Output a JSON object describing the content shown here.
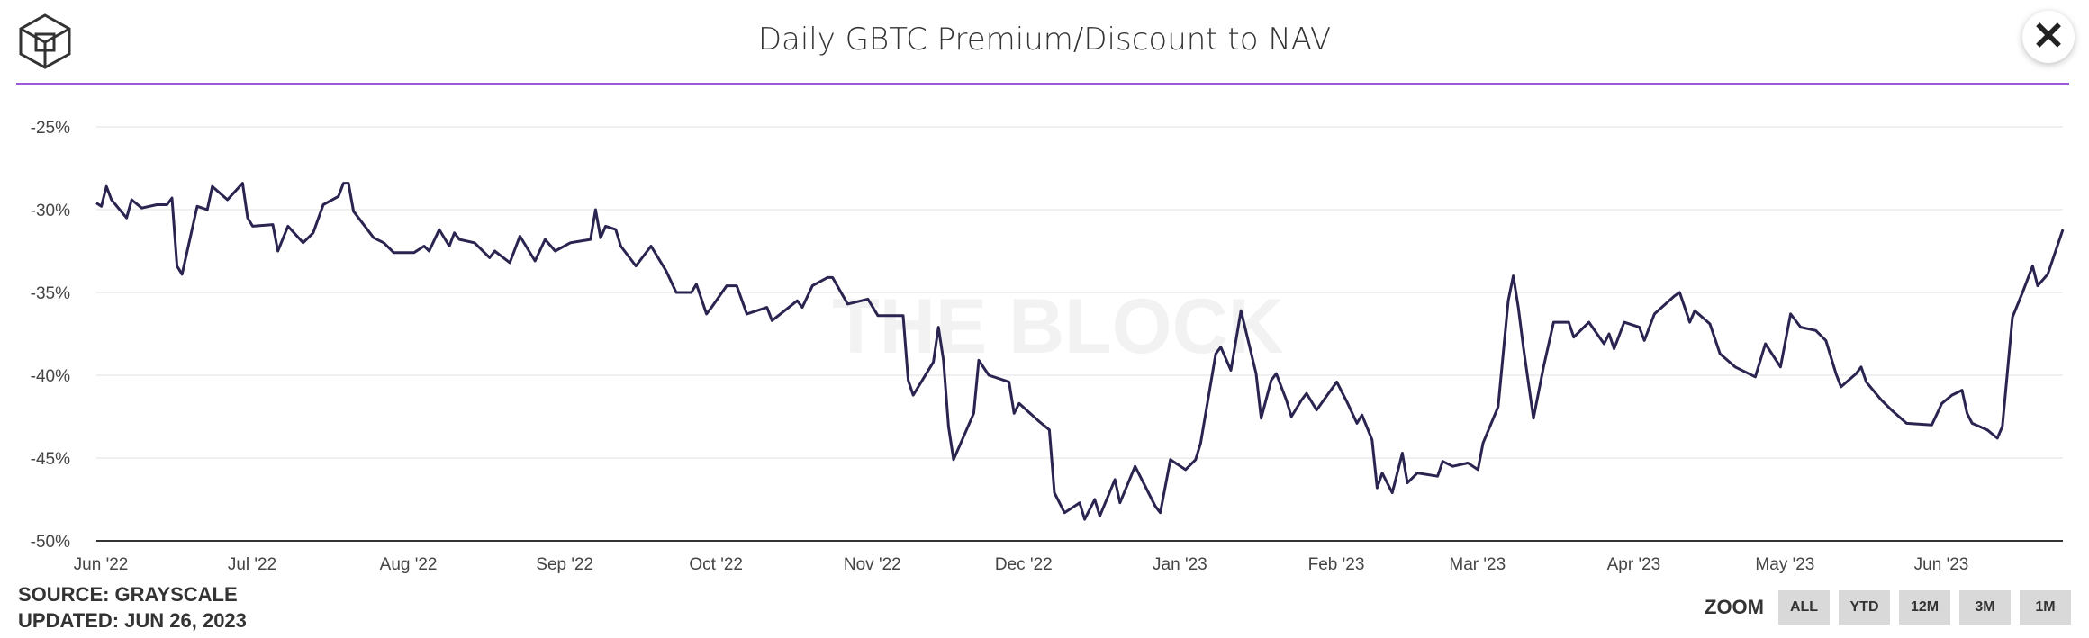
{
  "header": {
    "title": "Daily GBTC Premium/Discount to NAV",
    "close_icon": "close-x-icon",
    "logo_icon": "the-block-cube-logo"
  },
  "footer": {
    "source": "SOURCE: GRAYSCALE",
    "updated": "UPDATED: JUN 26, 2023"
  },
  "zoom": {
    "label": "ZOOM",
    "options": [
      "ALL",
      "YTD",
      "12M",
      "3M",
      "1M"
    ]
  },
  "colors": {
    "line": "#2a2550",
    "accent_rule": "#9b59d9",
    "grid": "#ebebeb"
  },
  "watermark": "THE BLOCK",
  "chart_data": {
    "type": "line",
    "title": "Daily GBTC Premium/Discount to NAV",
    "xlabel": "",
    "ylabel": "",
    "xlim": [
      "2022-06-01",
      "2023-06-26"
    ],
    "ylim": [
      -50,
      -25
    ],
    "y_ticks": [
      -25,
      -30,
      -35,
      -40,
      -45,
      -50
    ],
    "y_tick_labels": [
      "-25%",
      "-30%",
      "-35%",
      "-40%",
      "-45%",
      "-50%"
    ],
    "x_ticks": [
      "2022-06-01",
      "2022-07-01",
      "2022-08-01",
      "2022-09-01",
      "2022-10-01",
      "2022-11-01",
      "2022-12-01",
      "2023-01-01",
      "2023-02-01",
      "2023-03-01",
      "2023-04-01",
      "2023-05-01",
      "2023-06-01"
    ],
    "x_tick_labels": [
      "Jun '22",
      "Jul '22",
      "Aug '22",
      "Sep '22",
      "Oct '22",
      "Nov '22",
      "Dec '22",
      "Jan '23",
      "Feb '23",
      "Mar '23",
      "Apr '23",
      "May '23",
      "Jun '23"
    ],
    "grid": true,
    "legend": "none",
    "series": [
      {
        "points": [
          [
            "2022-06-01",
            -29.6
          ],
          [
            "2022-06-02",
            -29.8
          ],
          [
            "2022-06-03",
            -28.6
          ],
          [
            "2022-06-04",
            -29.4
          ],
          [
            "2022-06-07",
            -30.5
          ],
          [
            "2022-06-08",
            -29.4
          ],
          [
            "2022-06-10",
            -29.9
          ],
          [
            "2022-06-13",
            -29.7
          ],
          [
            "2022-06-15",
            -29.7
          ],
          [
            "2022-06-16",
            -29.3
          ],
          [
            "2022-06-17",
            -33.4
          ],
          [
            "2022-06-18",
            -33.9
          ],
          [
            "2022-06-21",
            -29.8
          ],
          [
            "2022-06-23",
            -30.0
          ],
          [
            "2022-06-24",
            -28.6
          ],
          [
            "2022-06-27",
            -29.4
          ],
          [
            "2022-06-30",
            -28.4
          ],
          [
            "2022-07-01",
            -30.5
          ],
          [
            "2022-07-02",
            -31.0
          ],
          [
            "2022-07-06",
            -30.9
          ],
          [
            "2022-07-07",
            -32.5
          ],
          [
            "2022-07-09",
            -31.0
          ],
          [
            "2022-07-12",
            -32.0
          ],
          [
            "2022-07-14",
            -31.4
          ],
          [
            "2022-07-16",
            -29.7
          ],
          [
            "2022-07-19",
            -29.2
          ],
          [
            "2022-07-20",
            -28.4
          ],
          [
            "2022-07-21",
            -28.4
          ],
          [
            "2022-07-22",
            -30.1
          ],
          [
            "2022-07-26",
            -31.7
          ],
          [
            "2022-07-28",
            -32.0
          ],
          [
            "2022-07-30",
            -32.6
          ],
          [
            "2022-08-03",
            -32.6
          ],
          [
            "2022-08-05",
            -32.2
          ],
          [
            "2022-08-06",
            -32.5
          ],
          [
            "2022-08-08",
            -31.2
          ],
          [
            "2022-08-10",
            -32.2
          ],
          [
            "2022-08-11",
            -31.4
          ],
          [
            "2022-08-12",
            -31.8
          ],
          [
            "2022-08-15",
            -32.0
          ],
          [
            "2022-08-18",
            -32.9
          ],
          [
            "2022-08-19",
            -32.5
          ],
          [
            "2022-08-22",
            -33.2
          ],
          [
            "2022-08-24",
            -31.6
          ],
          [
            "2022-08-27",
            -33.1
          ],
          [
            "2022-08-29",
            -31.8
          ],
          [
            "2022-08-31",
            -32.5
          ],
          [
            "2022-09-03",
            -32.0
          ],
          [
            "2022-09-07",
            -31.8
          ],
          [
            "2022-09-08",
            -30.0
          ],
          [
            "2022-09-09",
            -31.7
          ],
          [
            "2022-09-10",
            -31.0
          ],
          [
            "2022-09-12",
            -31.2
          ],
          [
            "2022-09-13",
            -32.2
          ],
          [
            "2022-09-16",
            -33.4
          ],
          [
            "2022-09-19",
            -32.2
          ],
          [
            "2022-09-22",
            -33.7
          ],
          [
            "2022-09-24",
            -35.0
          ],
          [
            "2022-09-27",
            -35.0
          ],
          [
            "2022-09-28",
            -34.5
          ],
          [
            "2022-09-30",
            -36.3
          ],
          [
            "2022-10-01",
            -35.9
          ],
          [
            "2022-10-04",
            -34.6
          ],
          [
            "2022-10-06",
            -34.6
          ],
          [
            "2022-10-08",
            -36.3
          ],
          [
            "2022-10-12",
            -35.9
          ],
          [
            "2022-10-13",
            -36.7
          ],
          [
            "2022-10-18",
            -35.5
          ],
          [
            "2022-10-19",
            -35.9
          ],
          [
            "2022-10-21",
            -34.6
          ],
          [
            "2022-10-24",
            -34.1
          ],
          [
            "2022-10-25",
            -34.1
          ],
          [
            "2022-10-28",
            -35.7
          ],
          [
            "2022-11-01",
            -35.4
          ],
          [
            "2022-11-03",
            -36.4
          ],
          [
            "2022-11-08",
            -36.4
          ],
          [
            "2022-11-09",
            -40.3
          ],
          [
            "2022-11-10",
            -41.2
          ],
          [
            "2022-11-14",
            -39.2
          ],
          [
            "2022-11-15",
            -37.1
          ],
          [
            "2022-11-16",
            -39.1
          ],
          [
            "2022-11-17",
            -43.1
          ],
          [
            "2022-11-18",
            -45.1
          ],
          [
            "2022-11-22",
            -42.3
          ],
          [
            "2022-11-23",
            -39.1
          ],
          [
            "2022-11-25",
            -40.0
          ],
          [
            "2022-11-29",
            -40.4
          ],
          [
            "2022-11-30",
            -42.3
          ],
          [
            "2022-12-01",
            -41.7
          ],
          [
            "2022-12-05",
            -42.8
          ],
          [
            "2022-12-07",
            -43.3
          ],
          [
            "2022-12-08",
            -47.1
          ],
          [
            "2022-12-10",
            -48.3
          ],
          [
            "2022-12-13",
            -47.7
          ],
          [
            "2022-12-14",
            -48.7
          ],
          [
            "2022-12-16",
            -47.5
          ],
          [
            "2022-12-17",
            -48.5
          ],
          [
            "2022-12-20",
            -46.3
          ],
          [
            "2022-12-21",
            -47.7
          ],
          [
            "2022-12-24",
            -45.5
          ],
          [
            "2022-12-28",
            -47.9
          ],
          [
            "2022-12-29",
            -48.3
          ],
          [
            "2022-12-31",
            -45.1
          ],
          [
            "2023-01-03",
            -45.7
          ],
          [
            "2023-01-05",
            -45.1
          ],
          [
            "2023-01-06",
            -44.1
          ],
          [
            "2023-01-09",
            -38.7
          ],
          [
            "2023-01-10",
            -38.3
          ],
          [
            "2023-01-12",
            -39.7
          ],
          [
            "2023-01-14",
            -36.1
          ],
          [
            "2023-01-17",
            -39.9
          ],
          [
            "2023-01-18",
            -42.6
          ],
          [
            "2023-01-20",
            -40.3
          ],
          [
            "2023-01-21",
            -39.9
          ],
          [
            "2023-01-23",
            -41.5
          ],
          [
            "2023-01-24",
            -42.5
          ],
          [
            "2023-01-26",
            -41.5
          ],
          [
            "2023-01-27",
            -41.1
          ],
          [
            "2023-01-29",
            -42.1
          ],
          [
            "2023-02-02",
            -40.4
          ],
          [
            "2023-02-04",
            -41.6
          ],
          [
            "2023-02-06",
            -42.9
          ],
          [
            "2023-02-07",
            -42.4
          ],
          [
            "2023-02-09",
            -43.9
          ],
          [
            "2023-02-10",
            -46.8
          ],
          [
            "2023-02-11",
            -45.9
          ],
          [
            "2023-02-13",
            -47.1
          ],
          [
            "2023-02-15",
            -44.7
          ],
          [
            "2023-02-16",
            -46.5
          ],
          [
            "2023-02-18",
            -45.9
          ],
          [
            "2023-02-22",
            -46.1
          ],
          [
            "2023-02-23",
            -45.2
          ],
          [
            "2023-02-25",
            -45.5
          ],
          [
            "2023-02-28",
            -45.3
          ],
          [
            "2023-03-02",
            -45.7
          ],
          [
            "2023-03-03",
            -44.1
          ],
          [
            "2023-03-06",
            -41.9
          ],
          [
            "2023-03-08",
            -35.5
          ],
          [
            "2023-03-09",
            -34.0
          ],
          [
            "2023-03-10",
            -35.9
          ],
          [
            "2023-03-11",
            -38.3
          ],
          [
            "2023-03-13",
            -42.6
          ],
          [
            "2023-03-15",
            -39.5
          ],
          [
            "2023-03-17",
            -36.8
          ],
          [
            "2023-03-20",
            -36.8
          ],
          [
            "2023-03-21",
            -37.7
          ],
          [
            "2023-03-24",
            -36.8
          ],
          [
            "2023-03-27",
            -38.1
          ],
          [
            "2023-03-28",
            -37.5
          ],
          [
            "2023-03-29",
            -38.4
          ],
          [
            "2023-03-31",
            -36.8
          ],
          [
            "2023-04-03",
            -37.1
          ],
          [
            "2023-04-04",
            -37.9
          ],
          [
            "2023-04-06",
            -36.3
          ],
          [
            "2023-04-10",
            -35.2
          ],
          [
            "2023-04-11",
            -35.0
          ],
          [
            "2023-04-13",
            -36.8
          ],
          [
            "2023-04-14",
            -36.1
          ],
          [
            "2023-04-17",
            -36.9
          ],
          [
            "2023-04-19",
            -38.7
          ],
          [
            "2023-04-22",
            -39.5
          ],
          [
            "2023-04-26",
            -40.1
          ],
          [
            "2023-04-28",
            -38.1
          ],
          [
            "2023-05-01",
            -39.5
          ],
          [
            "2023-05-03",
            -36.3
          ],
          [
            "2023-05-05",
            -37.1
          ],
          [
            "2023-05-08",
            -37.3
          ],
          [
            "2023-05-10",
            -37.9
          ],
          [
            "2023-05-12",
            -39.9
          ],
          [
            "2023-05-13",
            -40.7
          ],
          [
            "2023-05-16",
            -39.9
          ],
          [
            "2023-05-17",
            -39.5
          ],
          [
            "2023-05-18",
            -40.4
          ],
          [
            "2023-05-21",
            -41.5
          ],
          [
            "2023-05-23",
            -42.1
          ],
          [
            "2023-05-26",
            -42.9
          ],
          [
            "2023-05-31",
            -43.0
          ],
          [
            "2023-06-02",
            -41.7
          ],
          [
            "2023-06-04",
            -41.2
          ],
          [
            "2023-06-06",
            -40.9
          ],
          [
            "2023-06-07",
            -42.3
          ],
          [
            "2023-06-08",
            -42.9
          ],
          [
            "2023-06-11",
            -43.3
          ],
          [
            "2023-06-13",
            -43.8
          ],
          [
            "2023-06-14",
            -43.1
          ],
          [
            "2023-06-16",
            -36.5
          ],
          [
            "2023-06-18",
            -35.0
          ],
          [
            "2023-06-20",
            -33.4
          ],
          [
            "2023-06-21",
            -34.6
          ],
          [
            "2023-06-23",
            -33.9
          ],
          [
            "2023-06-26",
            -31.2
          ]
        ]
      }
    ]
  }
}
